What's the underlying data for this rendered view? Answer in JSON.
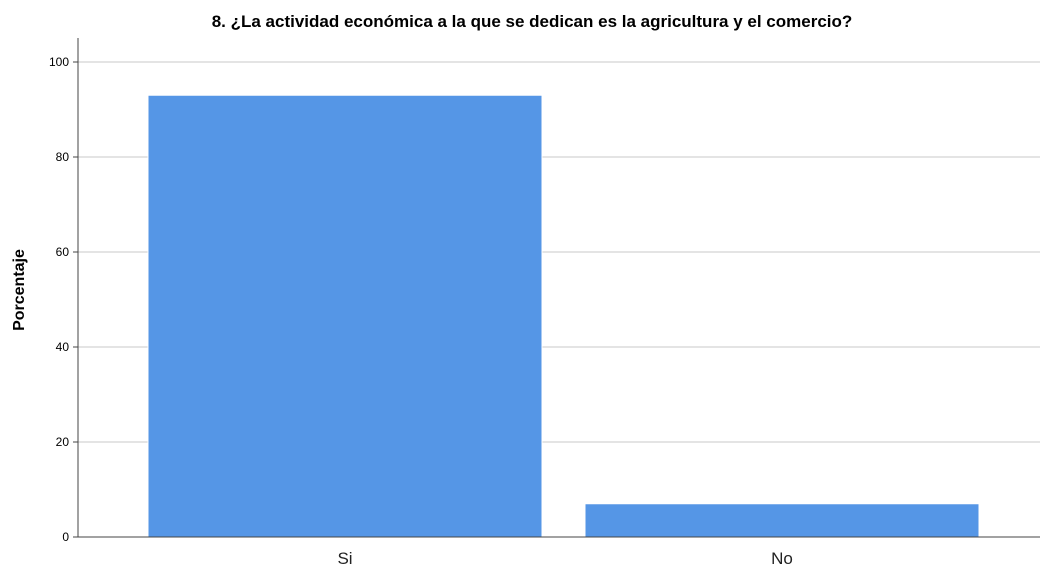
{
  "chart_data": {
    "type": "bar",
    "title": "8. ¿La actividad económica a la que se dedican es la agricultura y el comercio?",
    "xlabel": "",
    "ylabel": "Porcentaje",
    "categories": [
      "Si",
      "No"
    ],
    "values": [
      93,
      7
    ],
    "ylim": [
      0,
      100
    ],
    "yticks": [
      "0",
      "20",
      "40",
      "60",
      "80",
      "100"
    ],
    "grid": true,
    "bar_color": "#5596e6"
  }
}
